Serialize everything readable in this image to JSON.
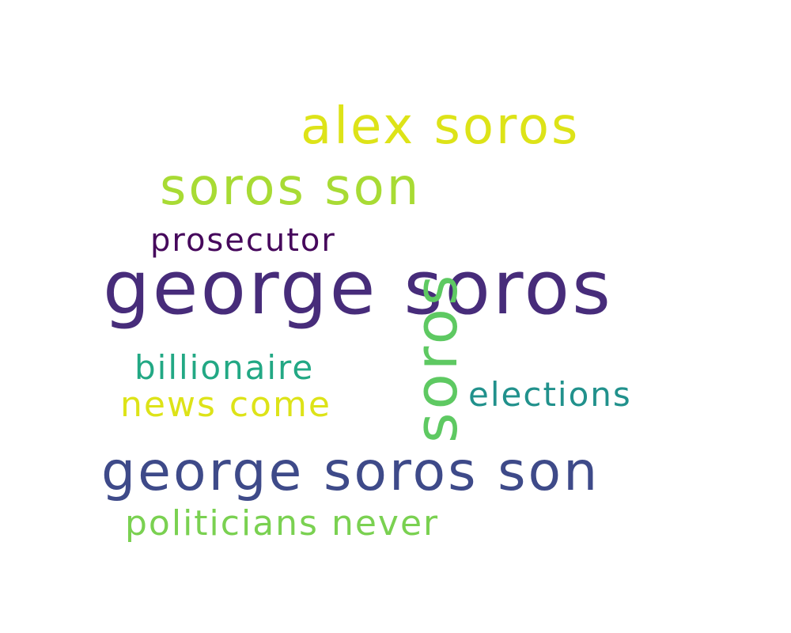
{
  "words": [
    {
      "id": "alex-soros",
      "text": "alex soros",
      "color": "#dde318"
    },
    {
      "id": "soros-son",
      "text": "soros son",
      "color": "#a8db34"
    },
    {
      "id": "prosecutor",
      "text": "prosecutor",
      "color": "#46085c"
    },
    {
      "id": "george-soros",
      "text": "george soros",
      "color": "#472c7a"
    },
    {
      "id": "soros-vertical",
      "text": "soros",
      "color": "#5ec962"
    },
    {
      "id": "billionaire",
      "text": "billionaire",
      "color": "#22a884"
    },
    {
      "id": "elections",
      "text": "elections",
      "color": "#21918c"
    },
    {
      "id": "news-come",
      "text": "news come",
      "color": "#dde318"
    },
    {
      "id": "george-soros-son",
      "text": "george soros son",
      "color": "#3e4a89"
    },
    {
      "id": "politicians-never",
      "text": "politicians never",
      "color": "#7ad151"
    }
  ]
}
